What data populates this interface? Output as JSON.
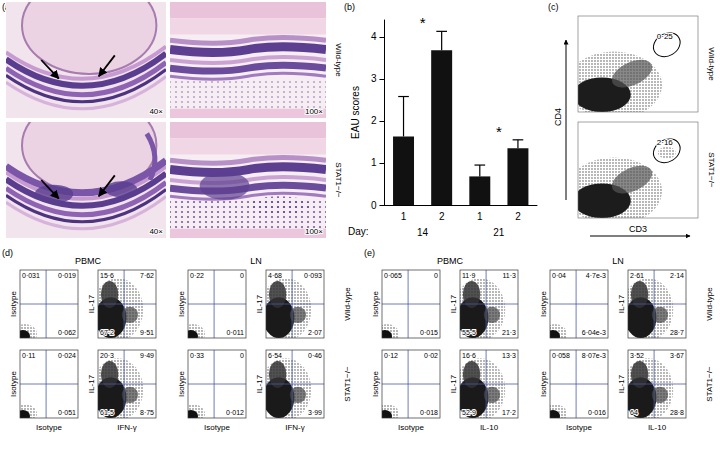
{
  "chart_data": {
    "type": "bar",
    "panel": "(b)",
    "y_label": "EAU scores",
    "categories": [
      "1",
      "2",
      "1",
      "2"
    ],
    "values": [
      1.63,
      3.68,
      0.68,
      1.35
    ],
    "errors": [
      0.95,
      0.45,
      0.27,
      0.2
    ],
    "color": "#111111",
    "ylim": [
      0,
      4.4
    ],
    "yticks": [
      0,
      1,
      2,
      3,
      4
    ],
    "groups": {
      "label": "Day:",
      "names": [
        "14",
        "21"
      ]
    },
    "annotations": [
      "*",
      "*"
    ]
  },
  "figure": {
    "a": {
      "label": "(a)",
      "rows": [
        {
          "name": "Wild-type",
          "magnifications": [
            "40×",
            "100×"
          ]
        },
        {
          "name": "STAT1−/−",
          "magnifications": [
            "40×",
            "100×"
          ]
        }
      ]
    },
    "c": {
      "label": "(c)",
      "x_label": "CD3",
      "y_label": "CD4",
      "rows": [
        {
          "name": "Wild-type",
          "gate": "0·25"
        },
        {
          "name": "STAT1−/−",
          "gate": "2·16"
        }
      ]
    },
    "d": {
      "label": "(d)",
      "y_label": "IL-17",
      "x_label": "IFN-γ",
      "control_label": "Isotype",
      "row_names": [
        "Wild-type",
        "STAT1−/−"
      ],
      "columns": [
        {
          "name": "PBMC",
          "rows": [
            {
              "isotype": {
                "ul": "0·031",
                "ur": "0·019",
                "lr": "0·062"
              },
              "stain": {
                "ul": "15·6",
                "ur": "7·62",
                "ll": "67·2",
                "lr": "9·51"
              }
            },
            {
              "isotype": {
                "ul": "0·11",
                "ur": "0·024",
                "lr": "0·051"
              },
              "stain": {
                "ul": "20·3",
                "ur": "9·49",
                "ll": "61·5",
                "lr": "8·75"
              }
            }
          ]
        },
        {
          "name": "LN",
          "rows": [
            {
              "isotype": {
                "ul": "0·22",
                "ur": "0",
                "lr": "0·011"
              },
              "stain": {
                "ul": "4·68",
                "ur": "0·093",
                "lr": "2·07"
              }
            },
            {
              "isotype": {
                "ul": "0·33",
                "ur": "0",
                "lr": "0·012"
              },
              "stain": {
                "ul": "6·54",
                "ur": "0·46",
                "lr": "3·99"
              }
            }
          ]
        }
      ]
    },
    "e": {
      "label": "(e)",
      "y_label": "IL-17",
      "x_label": "IL-10",
      "control_label": "Isotype",
      "row_names": [
        "Wild-type",
        "STAT1−/−"
      ],
      "columns": [
        {
          "name": "PBMC",
          "rows": [
            {
              "isotype": {
                "ul": "0·065",
                "ur": "0",
                "lr": "0·015"
              },
              "stain": {
                "ul": "11·9",
                "ur": "11·3",
                "ll": "55·5",
                "lr": "21·3"
              }
            },
            {
              "isotype": {
                "ul": "0·12",
                "ur": "0·02",
                "lr": "0·018"
              },
              "stain": {
                "ul": "16·6",
                "ur": "13·3",
                "ll": "52·9",
                "lr": "17·2"
              }
            }
          ]
        },
        {
          "name": "LN",
          "rows": [
            {
              "isotype": {
                "ul": "0·04",
                "ur": "4·7e-3",
                "lr": "6·04e-3"
              },
              "stain": {
                "ul": "2·61",
                "ur": "2·14",
                "lr": "28·7"
              }
            },
            {
              "isotype": {
                "ul": "0·058",
                "ur": "8·07e-3",
                "lr": "0·016"
              },
              "stain": {
                "ul": "3·52",
                "ur": "3·67",
                "ll": "64",
                "lr": "28·8"
              }
            }
          ]
        }
      ]
    }
  }
}
